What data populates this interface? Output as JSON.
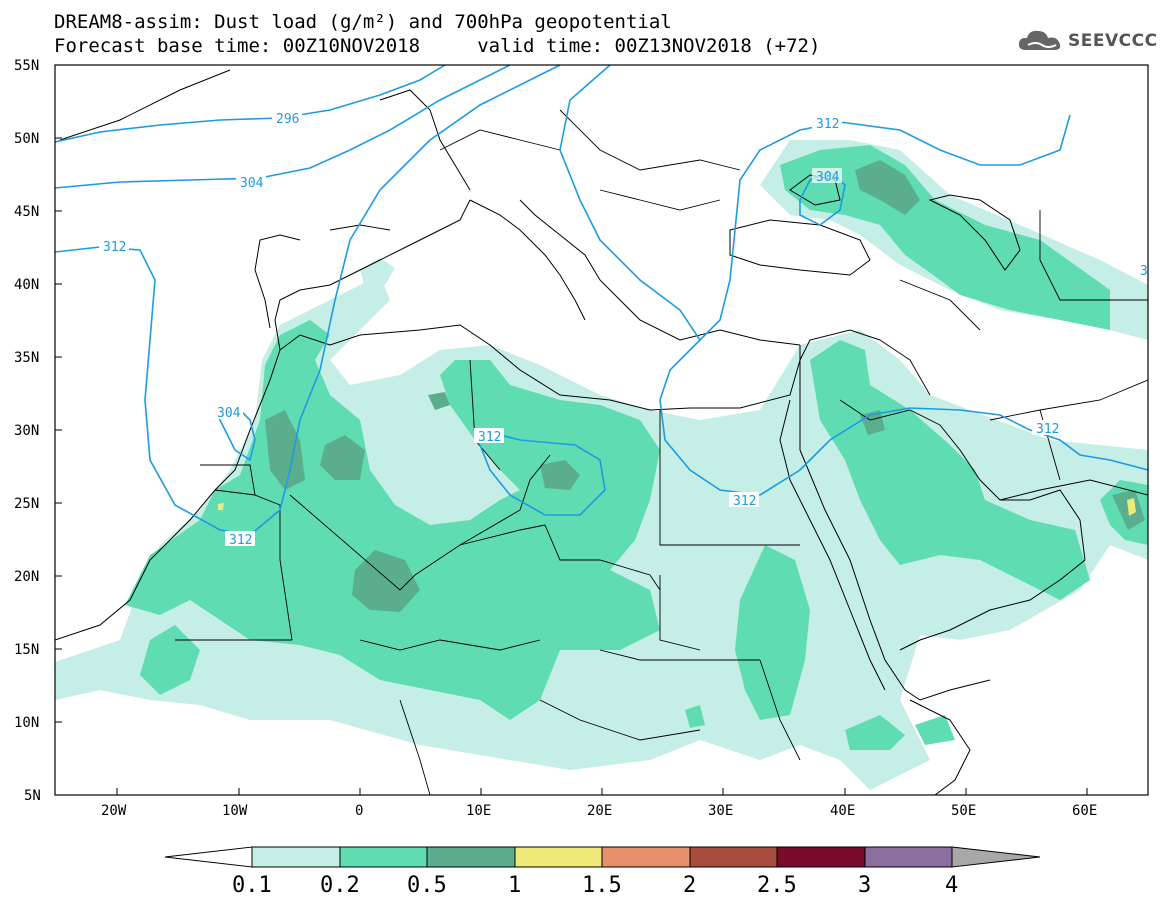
{
  "header": {
    "title_line1": "DREAM8-assim: Dust load (g/m²) and 700hPa geopotential",
    "title_line2": "Forecast base time: 00Z10NOV2018     valid time: 00Z13NOV2018 (+72)"
  },
  "logo": {
    "text": "SEEVCCC",
    "icon": "cloud-icon"
  },
  "map": {
    "lat_labels": [
      "55N",
      "50N",
      "45N",
      "40N",
      "35N",
      "30N",
      "25N",
      "20N",
      "15N",
      "10N",
      "5N"
    ],
    "lon_labels": [
      "20W",
      "10W",
      "0",
      "10E",
      "20E",
      "30E",
      "40E",
      "50E",
      "60E"
    ],
    "contour_labels": [
      "296",
      "304",
      "312",
      "304",
      "312",
      "312",
      "312",
      "312",
      "304",
      "312",
      "312",
      "3"
    ],
    "colors": {
      "dust_0_1": "#c4eee6",
      "dust_0_2": "#5fdcb2",
      "dust_0_5": "#5aae8e",
      "dust_1": "#f0e878",
      "contour": "#1e9be0"
    }
  },
  "colorbar": {
    "labels": [
      "0.1",
      "0.2",
      "0.5",
      "1",
      "1.5",
      "2",
      "2.5",
      "3",
      "4"
    ],
    "colors": [
      "#ffffff",
      "#c4eee6",
      "#5fdcb2",
      "#5aae8e",
      "#f0e878",
      "#e8906a",
      "#a84c40",
      "#780a2a",
      "#8a6ea0",
      "#a8a8a8"
    ]
  }
}
